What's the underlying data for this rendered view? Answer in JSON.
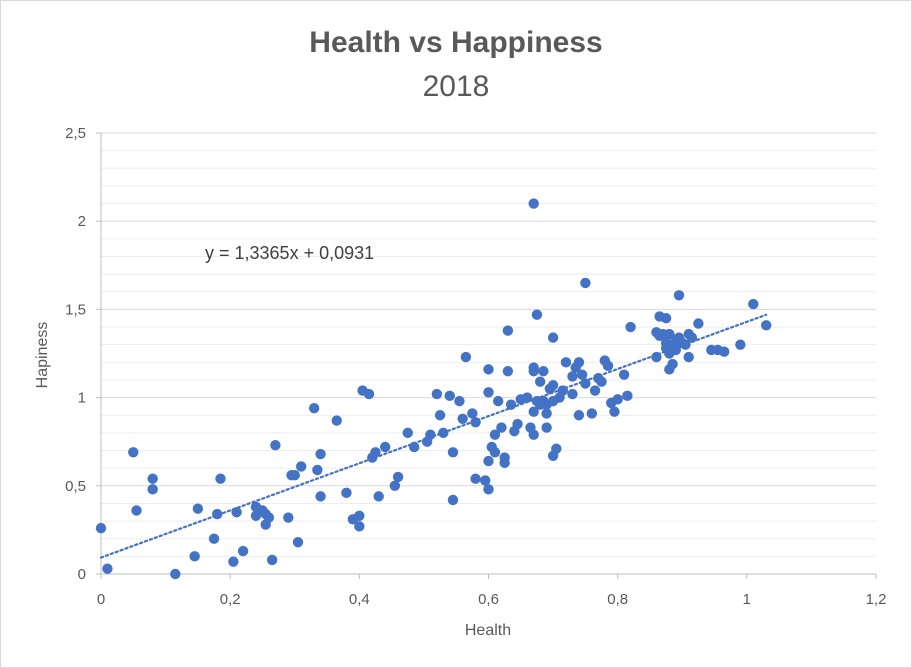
{
  "chart_data": {
    "type": "scatter",
    "title": "Health vs Happiness",
    "subtitle": "2018",
    "xlabel": "Health",
    "ylabel": "Hapiness",
    "xlim": [
      0,
      1.2
    ],
    "ylim": [
      0,
      2.5
    ],
    "xticks": [
      0,
      0.2,
      0.4,
      0.6,
      0.8,
      1,
      1.2
    ],
    "xtick_labels": [
      "0",
      "0,2",
      "0,4",
      "0,6",
      "0,8",
      "1",
      "1,2"
    ],
    "yticks": [
      0,
      0.5,
      1,
      1.5,
      2,
      2.5
    ],
    "ytick_labels": [
      "0",
      "0,5",
      "1",
      "1,5",
      "2",
      "2,5"
    ],
    "minor_grid_step": 0.1,
    "marker_color": "#4472C4",
    "trendline": {
      "slope": 1.3365,
      "intercept": 0.0931,
      "x_range": [
        0,
        1.03
      ],
      "equation_label": "y = 1,3365x + 0,0931",
      "color": "#4472C4",
      "style": "dotted"
    },
    "points": [
      [
        0.0,
        0.26
      ],
      [
        0.01,
        0.03
      ],
      [
        0.05,
        0.69
      ],
      [
        0.055,
        0.36
      ],
      [
        0.08,
        0.54
      ],
      [
        0.08,
        0.48
      ],
      [
        0.115,
        0.0
      ],
      [
        0.145,
        0.1
      ],
      [
        0.15,
        0.37
      ],
      [
        0.175,
        0.2
      ],
      [
        0.18,
        0.34
      ],
      [
        0.185,
        0.54
      ],
      [
        0.205,
        0.07
      ],
      [
        0.21,
        0.35
      ],
      [
        0.22,
        0.13
      ],
      [
        0.24,
        0.38
      ],
      [
        0.24,
        0.33
      ],
      [
        0.25,
        0.36
      ],
      [
        0.255,
        0.34
      ],
      [
        0.255,
        0.28
      ],
      [
        0.26,
        0.32
      ],
      [
        0.265,
        0.08
      ],
      [
        0.27,
        0.73
      ],
      [
        0.29,
        0.32
      ],
      [
        0.295,
        0.56
      ],
      [
        0.3,
        0.56
      ],
      [
        0.305,
        0.18
      ],
      [
        0.31,
        0.61
      ],
      [
        0.33,
        0.94
      ],
      [
        0.335,
        0.59
      ],
      [
        0.34,
        0.68
      ],
      [
        0.34,
        0.44
      ],
      [
        0.365,
        0.87
      ],
      [
        0.38,
        0.46
      ],
      [
        0.39,
        0.31
      ],
      [
        0.4,
        0.33
      ],
      [
        0.4,
        0.27
      ],
      [
        0.405,
        1.04
      ],
      [
        0.415,
        1.02
      ],
      [
        0.42,
        0.66
      ],
      [
        0.425,
        0.69
      ],
      [
        0.43,
        0.44
      ],
      [
        0.44,
        0.72
      ],
      [
        0.455,
        0.5
      ],
      [
        0.46,
        0.55
      ],
      [
        0.475,
        0.8
      ],
      [
        0.485,
        0.72
      ],
      [
        0.505,
        0.75
      ],
      [
        0.51,
        0.79
      ],
      [
        0.52,
        1.02
      ],
      [
        0.525,
        0.9
      ],
      [
        0.53,
        0.8
      ],
      [
        0.54,
        1.01
      ],
      [
        0.545,
        0.69
      ],
      [
        0.545,
        0.42
      ],
      [
        0.555,
        0.98
      ],
      [
        0.56,
        0.88
      ],
      [
        0.565,
        1.23
      ],
      [
        0.575,
        0.91
      ],
      [
        0.58,
        0.54
      ],
      [
        0.58,
        0.86
      ],
      [
        0.595,
        0.53
      ],
      [
        0.6,
        1.16
      ],
      [
        0.6,
        1.03
      ],
      [
        0.6,
        0.48
      ],
      [
        0.6,
        0.64
      ],
      [
        0.605,
        0.72
      ],
      [
        0.61,
        0.79
      ],
      [
        0.61,
        0.69
      ],
      [
        0.615,
        0.98
      ],
      [
        0.62,
        0.83
      ],
      [
        0.625,
        0.66
      ],
      [
        0.625,
        0.63
      ],
      [
        0.63,
        1.15
      ],
      [
        0.63,
        1.38
      ],
      [
        0.635,
        0.96
      ],
      [
        0.64,
        0.81
      ],
      [
        0.645,
        0.85
      ],
      [
        0.65,
        0.99
      ],
      [
        0.66,
        1.0
      ],
      [
        0.665,
        0.83
      ],
      [
        0.67,
        0.79
      ],
      [
        0.67,
        1.17
      ],
      [
        0.67,
        1.15
      ],
      [
        0.67,
        0.92
      ],
      [
        0.67,
        2.1
      ],
      [
        0.675,
        0.98
      ],
      [
        0.675,
        1.47
      ],
      [
        0.68,
        0.96
      ],
      [
        0.68,
        1.09
      ],
      [
        0.685,
        1.15
      ],
      [
        0.685,
        0.98
      ],
      [
        0.69,
        0.96
      ],
      [
        0.69,
        0.91
      ],
      [
        0.69,
        0.83
      ],
      [
        0.695,
        1.05
      ],
      [
        0.7,
        1.34
      ],
      [
        0.7,
        1.07
      ],
      [
        0.7,
        0.98
      ],
      [
        0.7,
        0.67
      ],
      [
        0.705,
        0.71
      ],
      [
        0.71,
        1.0
      ],
      [
        0.715,
        1.04
      ],
      [
        0.715,
        1.04
      ],
      [
        0.72,
        1.2
      ],
      [
        0.73,
        1.12
      ],
      [
        0.73,
        1.02
      ],
      [
        0.735,
        1.17
      ],
      [
        0.74,
        0.9
      ],
      [
        0.74,
        1.2
      ],
      [
        0.745,
        1.13
      ],
      [
        0.75,
        1.08
      ],
      [
        0.75,
        1.65
      ],
      [
        0.76,
        0.91
      ],
      [
        0.765,
        1.04
      ],
      [
        0.77,
        1.11
      ],
      [
        0.775,
        1.09
      ],
      [
        0.78,
        1.21
      ],
      [
        0.785,
        1.18
      ],
      [
        0.79,
        0.97
      ],
      [
        0.795,
        0.92
      ],
      [
        0.8,
        0.99
      ],
      [
        0.81,
        1.13
      ],
      [
        0.815,
        1.01
      ],
      [
        0.82,
        1.4
      ],
      [
        0.86,
        1.23
      ],
      [
        0.86,
        1.37
      ],
      [
        0.865,
        1.46
      ],
      [
        0.865,
        1.35
      ],
      [
        0.87,
        1.36
      ],
      [
        0.875,
        1.31
      ],
      [
        0.875,
        1.28
      ],
      [
        0.875,
        1.45
      ],
      [
        0.88,
        1.36
      ],
      [
        0.88,
        1.25
      ],
      [
        0.88,
        1.16
      ],
      [
        0.885,
        1.19
      ],
      [
        0.885,
        1.3
      ],
      [
        0.89,
        1.27
      ],
      [
        0.89,
        1.33
      ],
      [
        0.895,
        1.58
      ],
      [
        0.895,
        1.34
      ],
      [
        0.9,
        1.31
      ],
      [
        0.905,
        1.3
      ],
      [
        0.91,
        1.36
      ],
      [
        0.91,
        1.23
      ],
      [
        0.915,
        1.34
      ],
      [
        0.925,
        1.42
      ],
      [
        0.945,
        1.27
      ],
      [
        0.955,
        1.27
      ],
      [
        0.965,
        1.26
      ],
      [
        0.99,
        1.3
      ],
      [
        1.01,
        1.53
      ],
      [
        1.03,
        1.41
      ]
    ]
  }
}
